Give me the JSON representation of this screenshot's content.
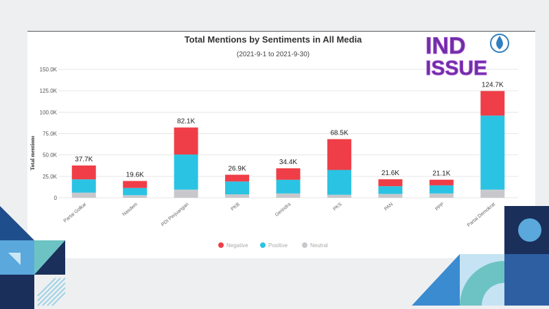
{
  "logo": {
    "text_top": "IND",
    "text_bottom": "ISSUE"
  },
  "chart_data": {
    "type": "bar",
    "stacked": true,
    "title": "Total Mentions by Sentiments in All Media",
    "subtitle": "(2021-9-1 to 2021-9-30)",
    "xlabel": "",
    "ylabel": "Total mentions",
    "ylim": [
      0,
      150000
    ],
    "yticks": [
      "0",
      "25.0K",
      "50.0K",
      "75.0K",
      "100.0K",
      "125.0K",
      "150.0K"
    ],
    "categories": [
      "Partai Golkar",
      "Nasdem",
      "PDI Perjuangan",
      "PKB",
      "Gerindra",
      "PKS",
      "PAN",
      "PPP",
      "Partai Demokrat"
    ],
    "totals": [
      "37.7K",
      "19.6K",
      "82.1K",
      "26.9K",
      "34.4K",
      "68.5K",
      "21.6K",
      "21.1K",
      "124.7K"
    ],
    "series": [
      {
        "name": "Neutral",
        "color": "#c8c8cc",
        "values": [
          6000,
          3000,
          9500,
          4000,
          5000,
          3500,
          4500,
          5000,
          9500
        ]
      },
      {
        "name": "Positive",
        "color": "#2bc3e3",
        "values": [
          15500,
          8500,
          41000,
          15000,
          16000,
          29000,
          9000,
          9500,
          86500
        ]
      },
      {
        "name": "Negative",
        "color": "#ef3e47",
        "values": [
          16200,
          8100,
          31600,
          7900,
          13400,
          36000,
          8100,
          6600,
          28700
        ]
      }
    ],
    "legend": {
      "position": "bottom",
      "order": [
        "Negative",
        "Positive",
        "Neutral"
      ]
    },
    "grid": true
  }
}
